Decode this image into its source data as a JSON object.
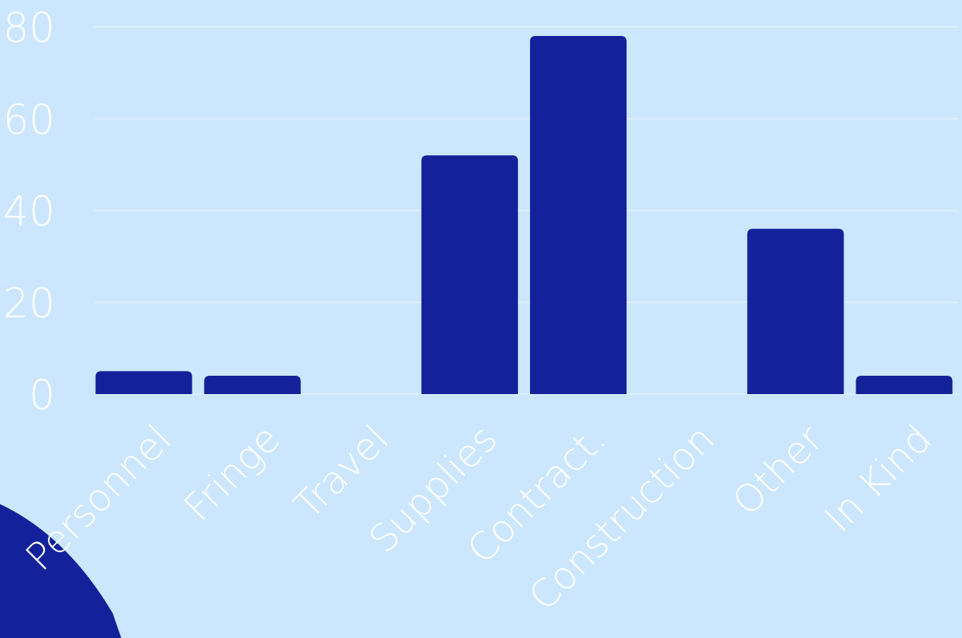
{
  "colors": {
    "background": "#cce7fd",
    "bar": "#13229a",
    "text": "#ffffff",
    "grid": "#ddeffd"
  },
  "chart_data": {
    "type": "bar",
    "categories": [
      "Personnel",
      "Fringe",
      "Travel",
      "Supplies",
      "Contract.",
      "Construction",
      "Other",
      "In Kind"
    ],
    "values": [
      5,
      4,
      0,
      52,
      78,
      0,
      36,
      4
    ],
    "y_ticks": [
      "0",
      "20",
      "40",
      "60",
      "80"
    ],
    "ylim": [
      0,
      80
    ],
    "grid": true,
    "title": "",
    "xlabel": "",
    "ylabel": ""
  }
}
